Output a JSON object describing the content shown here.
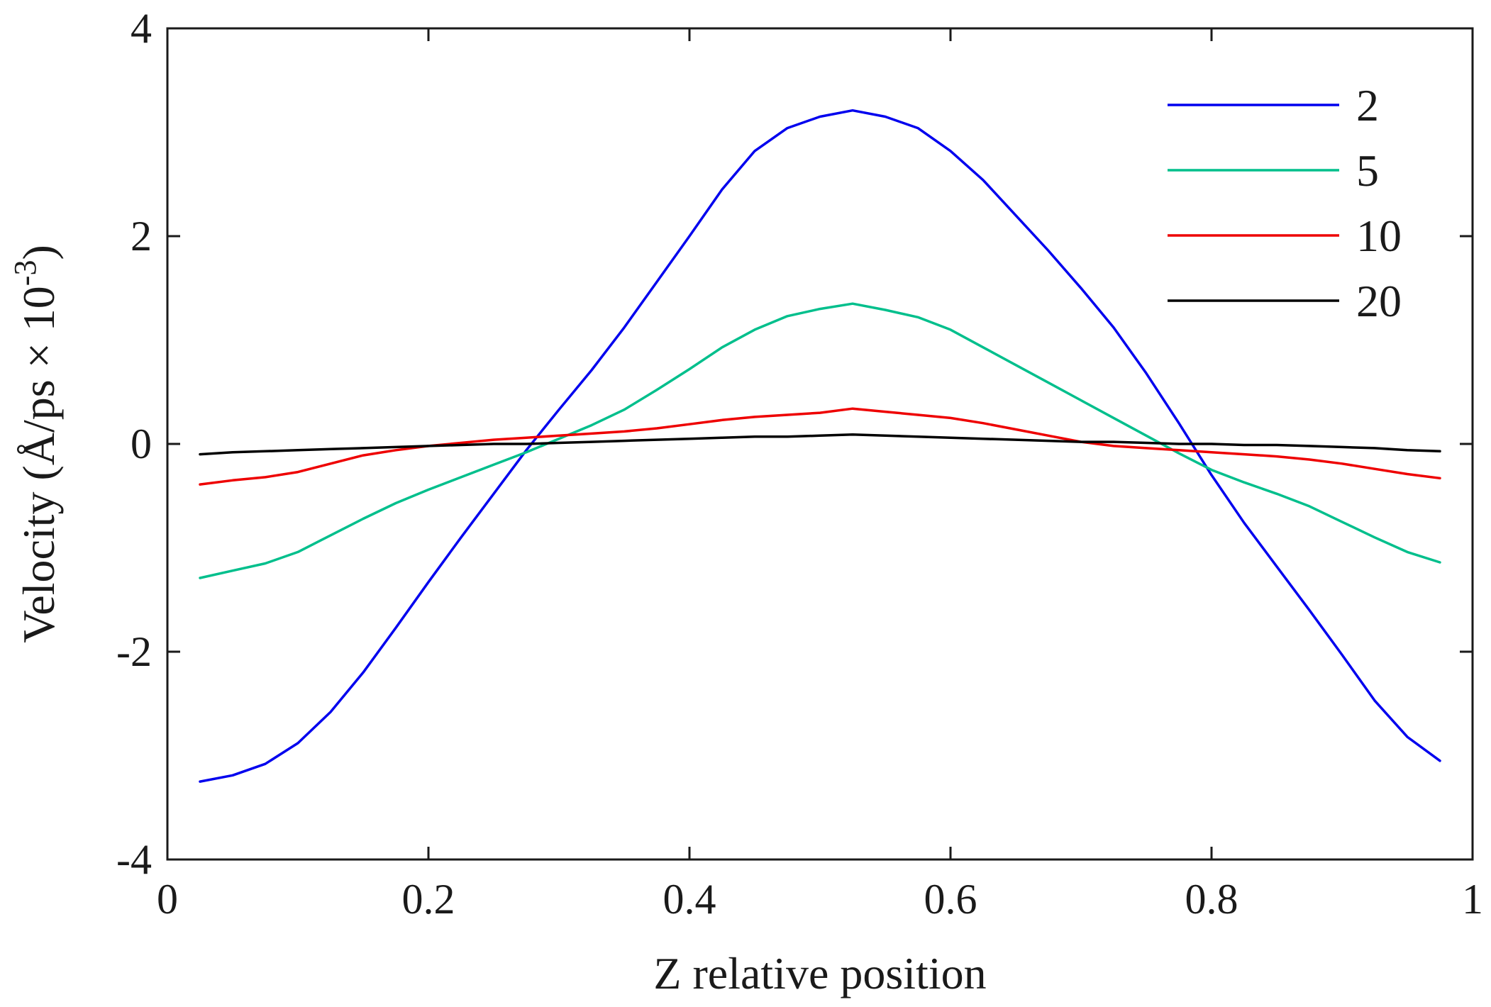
{
  "chart_data": {
    "type": "line",
    "title": "",
    "xlabel": "Z relative position",
    "ylabel": "Velocity (Å/ps × 10",
    "ylabel_exponent": "-3",
    "ylabel_close": ")",
    "xlim": [
      0,
      1
    ],
    "ylim": [
      -4,
      4
    ],
    "xticks": [
      0,
      0.2,
      0.4,
      0.6,
      0.8,
      1
    ],
    "xtick_labels": [
      "0",
      "0.2",
      "0.4",
      "0.6",
      "0.8",
      "1"
    ],
    "yticks": [
      -4,
      -2,
      0,
      2,
      4
    ],
    "ytick_labels": [
      "-4",
      "-2",
      "0",
      "2",
      "4"
    ],
    "grid": false,
    "box": true,
    "legend": "top-right",
    "x": [
      0.025,
      0.05,
      0.075,
      0.1,
      0.125,
      0.15,
      0.175,
      0.2,
      0.225,
      0.25,
      0.275,
      0.3,
      0.325,
      0.35,
      0.375,
      0.4,
      0.425,
      0.45,
      0.475,
      0.5,
      0.525,
      0.55,
      0.575,
      0.6,
      0.625,
      0.65,
      0.675,
      0.7,
      0.725,
      0.75,
      0.775,
      0.8,
      0.825,
      0.85,
      0.875,
      0.9,
      0.925,
      0.95,
      0.975
    ],
    "series": [
      {
        "name": "2",
        "color": "#0000ee",
        "values": [
          -3.25,
          -3.19,
          -3.08,
          -2.88,
          -2.58,
          -2.2,
          -1.77,
          -1.33,
          -0.9,
          -0.48,
          -0.06,
          0.33,
          0.71,
          1.12,
          1.56,
          2.0,
          2.45,
          2.82,
          3.04,
          3.15,
          3.21,
          3.15,
          3.04,
          2.82,
          2.54,
          2.2,
          1.86,
          1.5,
          1.12,
          0.68,
          0.2,
          -0.3,
          -0.76,
          -1.18,
          -1.6,
          -2.03,
          -2.47,
          -2.82,
          -3.05
        ]
      },
      {
        "name": "5",
        "color": "#00bf8c",
        "values": [
          -1.29,
          -1.22,
          -1.15,
          -1.04,
          -0.88,
          -0.72,
          -0.57,
          -0.44,
          -0.32,
          -0.2,
          -0.08,
          0.05,
          0.18,
          0.33,
          0.52,
          0.72,
          0.93,
          1.1,
          1.23,
          1.3,
          1.35,
          1.29,
          1.22,
          1.1,
          0.93,
          0.76,
          0.59,
          0.42,
          0.25,
          0.08,
          -0.09,
          -0.25,
          -0.37,
          -0.48,
          -0.6,
          -0.75,
          -0.9,
          -1.04,
          -1.14
        ]
      },
      {
        "name": "10",
        "color": "#ee0000",
        "values": [
          -0.39,
          -0.35,
          -0.32,
          -0.27,
          -0.19,
          -0.11,
          -0.06,
          -0.02,
          0.01,
          0.04,
          0.06,
          0.08,
          0.1,
          0.12,
          0.15,
          0.19,
          0.23,
          0.26,
          0.28,
          0.3,
          0.34,
          0.31,
          0.28,
          0.25,
          0.2,
          0.14,
          0.08,
          0.02,
          -0.02,
          -0.04,
          -0.06,
          -0.08,
          -0.1,
          -0.12,
          -0.15,
          -0.19,
          -0.24,
          -0.29,
          -0.33
        ]
      },
      {
        "name": "20",
        "color": "#000000",
        "values": [
          -0.1,
          -0.08,
          -0.07,
          -0.06,
          -0.05,
          -0.04,
          -0.03,
          -0.02,
          -0.01,
          0.0,
          0.0,
          0.01,
          0.02,
          0.03,
          0.04,
          0.05,
          0.06,
          0.07,
          0.07,
          0.08,
          0.09,
          0.08,
          0.07,
          0.06,
          0.05,
          0.04,
          0.03,
          0.02,
          0.02,
          0.01,
          0.0,
          0.0,
          -0.01,
          -0.01,
          -0.02,
          -0.03,
          -0.04,
          -0.06,
          -0.07
        ]
      }
    ]
  }
}
